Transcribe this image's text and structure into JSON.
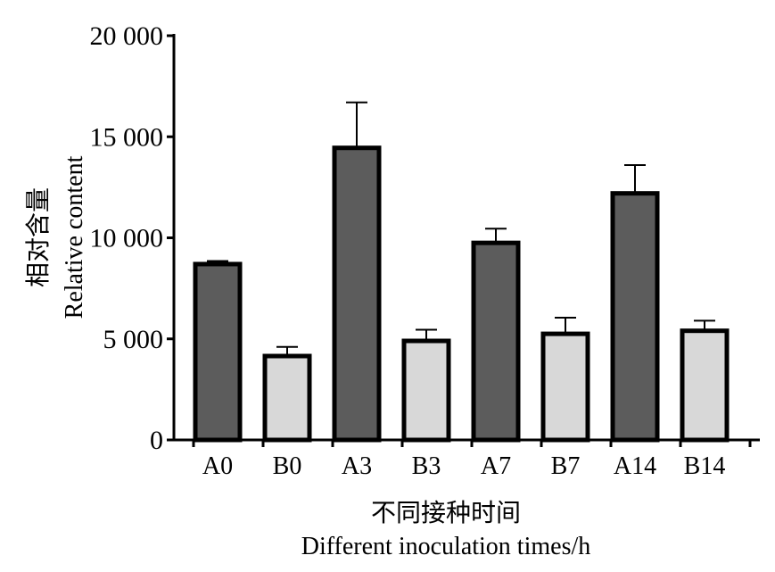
{
  "chart_data": {
    "type": "bar",
    "categories": [
      "A0",
      "B0",
      "A3",
      "B3",
      "A7",
      "B7",
      "A14",
      "B14"
    ],
    "values": [
      8700,
      4150,
      14450,
      4900,
      9750,
      5250,
      12200,
      5400
    ],
    "errors": [
      150,
      450,
      2250,
      550,
      700,
      800,
      1400,
      500
    ],
    "ylim": [
      0,
      20000
    ],
    "yticks": [
      0,
      5000,
      10000,
      15000,
      20000
    ],
    "ytick_labels": [
      "0",
      "5 000",
      "10 000",
      "15 000",
      "20 000"
    ],
    "ylabel_cn": "相对含量",
    "ylabel_en": "Relative content",
    "xlabel_cn": "不同接种时间",
    "xlabel_en": "Different inoculation times/h",
    "colors": {
      "A": "#5c5c5c",
      "B": "#d8d8d8",
      "edge": "#000000"
    }
  }
}
